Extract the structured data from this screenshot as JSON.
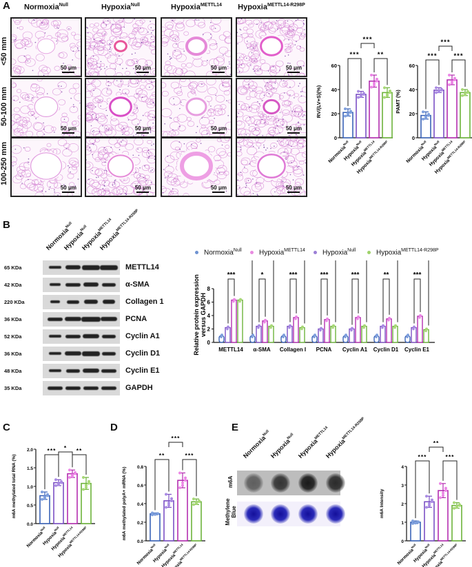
{
  "panels": {
    "A": {
      "label": "A",
      "columns": [
        {
          "base": "Normoxia",
          "sup": "Null"
        },
        {
          "base": "Hypoxia",
          "sup": "Null"
        },
        {
          "base": "Hypoxia",
          "sup": "METTL14"
        },
        {
          "base": "Hypoxia",
          "sup": "METTL14-R298P"
        }
      ],
      "rows": [
        "<50 mm",
        "50-100 mm",
        "100-250 mm"
      ],
      "scale_bar": "50 μm"
    },
    "B": {
      "label": "B",
      "lanes": [
        {
          "base": "Normoxia",
          "sup": "Null"
        },
        {
          "base": "Hypoxia",
          "sup": "Null"
        },
        {
          "base": "Hypoxia",
          "sup": "METTL14"
        },
        {
          "base": "Hypoxia",
          "sup": "METTL14-R298P"
        }
      ],
      "blots": [
        {
          "kda": "65 KDa",
          "protein": "METTL14"
        },
        {
          "kda": "42 KDa",
          "protein": "α-SMA"
        },
        {
          "kda": "220 KDa",
          "protein": "Collagen 1"
        },
        {
          "kda": "36 KDa",
          "protein": "PCNA"
        },
        {
          "kda": "52 KDa",
          "protein": "Cyclin A1"
        },
        {
          "kda": "36 KDa",
          "protein": "Cyclin D1"
        },
        {
          "kda": "48 KDa",
          "protein": "Cyclin E1"
        },
        {
          "kda": "35 KDa",
          "protein": "GAPDH"
        }
      ],
      "legend": [
        {
          "base": "Normoxia",
          "sup": "Null",
          "color": "#6f93d1"
        },
        {
          "base": "Hypoxia",
          "sup": "METTL14",
          "color": "#e88be0"
        },
        {
          "base": "Hypoxia",
          "sup": "Null",
          "color": "#9b7fd6"
        },
        {
          "base": "Hypoxia",
          "sup": "METTL14-R298P",
          "color": "#9fd26a"
        }
      ]
    },
    "C": {
      "label": "C"
    },
    "D": {
      "label": "D"
    },
    "E": {
      "label": "E",
      "dot_rows": [
        "m6A",
        "Methylene Blue"
      ],
      "lanes": [
        {
          "base": "Normoxia",
          "sup": "Null"
        },
        {
          "base": "Hypoxia",
          "sup": "Null"
        },
        {
          "base": "Hypoxia",
          "sup": "METTL14"
        },
        {
          "base": "Hypoxia",
          "sup": "METTL14-R298P"
        }
      ]
    }
  },
  "colors": {
    "normoxia_null": "#3a63b8",
    "hypoxia_null": "#7b4fc4",
    "hypoxia_mettl14": "#b42db0",
    "hypoxia_r298p": "#6cb33a",
    "dot_normoxia_null": "#7fa0dd",
    "dot_hypoxia_null": "#a98be3",
    "dot_hypoxia_mettl14": "#ec86e6",
    "dot_hypoxia_r298p": "#a8d877"
  },
  "chart_data": [
    {
      "id": "A-RV",
      "type": "bar",
      "categories": [
        "NormoxiaNull",
        "HypoxiaNull",
        "HypoxiaMETTL14",
        "HypoxiaMETTL14-R298P"
      ],
      "values": [
        21,
        36,
        47,
        37.5
      ],
      "errors": [
        3,
        2.5,
        5,
        4
      ],
      "ylabel": "RV/(LV+S)(%)",
      "ylim": [
        0,
        60
      ],
      "yticks": [
        0,
        20,
        40,
        60
      ],
      "significance": [
        {
          "pair": [
            0,
            1
          ],
          "label": "***"
        },
        {
          "pair": [
            1,
            2
          ],
          "label": "***"
        },
        {
          "pair": [
            2,
            3
          ],
          "label": "**"
        }
      ]
    },
    {
      "id": "A-PAMT",
      "type": "bar",
      "categories": [
        "NormoxiaNull",
        "HypoxiaNull",
        "HypoxiaMETTL14",
        "HypoxiaMETTL14-R298P"
      ],
      "values": [
        18.5,
        39.5,
        48,
        37.5
      ],
      "errors": [
        3,
        2,
        4,
        2.5
      ],
      "ylabel": "PAMT (%)",
      "ylim": [
        0,
        60
      ],
      "yticks": [
        0,
        20,
        40,
        60
      ],
      "significance": [
        {
          "pair": [
            0,
            1
          ],
          "label": "***"
        },
        {
          "pair": [
            1,
            2
          ],
          "label": "***"
        },
        {
          "pair": [
            2,
            3
          ],
          "label": "***"
        }
      ]
    },
    {
      "id": "B-quant",
      "type": "bar",
      "categories": [
        "METTL14",
        "α-SMA",
        "Collagen I",
        "PCNA",
        "Cyclin A1",
        "Cyclin D1",
        "Cyclin E1"
      ],
      "series": [
        {
          "name": "NormoxiaNull",
          "values": [
            1,
            1,
            1,
            1,
            1,
            1,
            1
          ]
        },
        {
          "name": "HypoxiaNull",
          "values": [
            2.2,
            2.4,
            2.4,
            2.0,
            2.0,
            2.4,
            2.2
          ]
        },
        {
          "name": "HypoxiaMETTL14",
          "values": [
            6.3,
            3.2,
            3.7,
            3.4,
            3.7,
            3.5,
            3.9
          ]
        },
        {
          "name": "HypoxiaMETTL14-R298P",
          "values": [
            6.3,
            2.4,
            2.2,
            2.4,
            2.4,
            2.4,
            1.9
          ]
        }
      ],
      "ylabel": "Relative protein expression versus GAPDH",
      "ylim": [
        0,
        8
      ],
      "yticks": [
        0,
        2,
        4,
        6,
        8
      ],
      "significance": {
        "normoxia_vs_hypoxia": [
          "***",
          "***",
          "***",
          "**",
          "**",
          "***",
          "***"
        ],
        "hypoxia_vs_mettl14": [
          "***",
          "*",
          "***",
          "***",
          "***",
          "**",
          "***"
        ],
        "mettl14_vs_r298p": [
          "",
          "*",
          "***",
          "**",
          "***",
          "**",
          "***"
        ]
      }
    },
    {
      "id": "C",
      "type": "bar",
      "categories": [
        "NormoxiaNull",
        "HypoxiaNull",
        "HypoxiaMETTL14",
        "HypoxiaMETTL14-R298P"
      ],
      "values": [
        0.75,
        1.1,
        1.34,
        1.08
      ],
      "errors": [
        0.1,
        0.08,
        0.1,
        0.16
      ],
      "ylabel": "m6A methylated total RNA (%)",
      "ylim": [
        0,
        2.0
      ],
      "yticks": [
        0.0,
        0.5,
        1.0,
        1.5,
        2.0
      ],
      "significance": [
        {
          "pair": [
            0,
            1
          ],
          "label": "***"
        },
        {
          "pair": [
            1,
            2
          ],
          "label": "*"
        },
        {
          "pair": [
            2,
            3
          ],
          "label": "**"
        }
      ]
    },
    {
      "id": "D",
      "type": "bar",
      "categories": [
        "NormoxiaNull",
        "HypoxiaNull",
        "HypoxiaMETTL14",
        "HypoxiaMETTL14-R298P"
      ],
      "values": [
        0.29,
        0.43,
        0.65,
        0.42
      ],
      "errors": [
        0.01,
        0.07,
        0.08,
        0.03
      ],
      "ylabel": "m6A methylated polyA+ mRNA (%)",
      "ylim": [
        0,
        0.8
      ],
      "yticks": [
        0.0,
        0.2,
        0.4,
        0.6,
        0.8
      ],
      "significance": [
        {
          "pair": [
            0,
            1
          ],
          "label": "**"
        },
        {
          "pair": [
            1,
            2
          ],
          "label": "***"
        },
        {
          "pair": [
            2,
            3
          ],
          "label": "***"
        }
      ]
    },
    {
      "id": "E-intensity",
      "type": "bar",
      "categories": [
        "NormoxiaNull",
        "HypoxiaNull",
        "HypoxiaMETTL14",
        "HypoxiaMETTL14-R298P"
      ],
      "values": [
        1.0,
        2.1,
        2.7,
        1.9
      ],
      "errors": [
        0.07,
        0.3,
        0.38,
        0.15
      ],
      "ylabel": "m6A Intensity",
      "ylim": [
        0,
        4
      ],
      "yticks": [
        0,
        1,
        2,
        3,
        4
      ],
      "significance": [
        {
          "pair": [
            0,
            1
          ],
          "label": "***"
        },
        {
          "pair": [
            1,
            2
          ],
          "label": "**"
        },
        {
          "pair": [
            2,
            3
          ],
          "label": "***"
        }
      ]
    }
  ]
}
